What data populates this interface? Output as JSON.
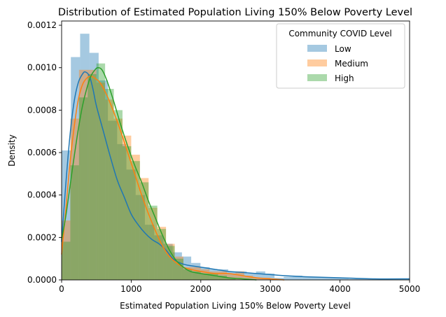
{
  "chart_data": {
    "type": "histogram",
    "title": "Distribution of Estimated Population Living 150% Below Poverty Level",
    "xlabel": "Estimated Population Living 150% Below Poverty Level",
    "ylabel": "Density",
    "xlim": [
      0,
      5000
    ],
    "ylim": [
      0,
      0.00122
    ],
    "x_ticks": [
      0,
      1000,
      2000,
      3000,
      4000,
      5000
    ],
    "x_tick_labels": [
      "0",
      "1000",
      "2000",
      "3000",
      "4000",
      "5000"
    ],
    "y_ticks": [
      0,
      0.0002,
      0.0004,
      0.0006,
      0.0008,
      0.001,
      0.0012
    ],
    "y_tick_labels": [
      "0.0000",
      "0.0002",
      "0.0004",
      "0.0006",
      "0.0008",
      "0.0010",
      "0.0012"
    ],
    "grid": false,
    "legend": {
      "title": "Community COVID Level",
      "placement": "top-right"
    },
    "series": [
      {
        "name": "Low",
        "color": "#1f77b4",
        "bars": [
          {
            "x0": 0,
            "x1": 133,
            "y": 0.00061
          },
          {
            "x0": 133,
            "x1": 266,
            "y": 0.00105
          },
          {
            "x0": 266,
            "x1": 399,
            "y": 0.00116
          },
          {
            "x0": 399,
            "x1": 532,
            "y": 0.00107
          },
          {
            "x0": 532,
            "x1": 665,
            "y": 0.00094
          },
          {
            "x0": 665,
            "x1": 798,
            "y": 0.00075
          },
          {
            "x0": 798,
            "x1": 931,
            "y": 0.00064
          },
          {
            "x0": 931,
            "x1": 1064,
            "y": 0.00052
          },
          {
            "x0": 1064,
            "x1": 1197,
            "y": 0.0004
          },
          {
            "x0": 1197,
            "x1": 1330,
            "y": 0.00026
          },
          {
            "x0": 1330,
            "x1": 1463,
            "y": 0.00021
          },
          {
            "x0": 1463,
            "x1": 1596,
            "y": 0.00017
          },
          {
            "x0": 1596,
            "x1": 1729,
            "y": 0.00013
          },
          {
            "x0": 1729,
            "x1": 1862,
            "y": 0.00011
          },
          {
            "x0": 1862,
            "x1": 1995,
            "y": 8e-05
          },
          {
            "x0": 1995,
            "x1": 2128,
            "y": 6e-05
          },
          {
            "x0": 2128,
            "x1": 2261,
            "y": 5e-05
          },
          {
            "x0": 2261,
            "x1": 2394,
            "y": 5e-05
          },
          {
            "x0": 2394,
            "x1": 2527,
            "y": 4e-05
          },
          {
            "x0": 2527,
            "x1": 2660,
            "y": 4e-05
          },
          {
            "x0": 2660,
            "x1": 2793,
            "y": 3e-05
          },
          {
            "x0": 2793,
            "x1": 2926,
            "y": 4e-05
          },
          {
            "x0": 2926,
            "x1": 3059,
            "y": 3e-05
          },
          {
            "x0": 3059,
            "x1": 3192,
            "y": 1e-05
          },
          {
            "x0": 3192,
            "x1": 3325,
            "y": 1.5e-05
          },
          {
            "x0": 3325,
            "x1": 3458,
            "y": 2e-05
          },
          {
            "x0": 3458,
            "x1": 3591,
            "y": 1.5e-05
          },
          {
            "x0": 3591,
            "x1": 3724,
            "y": 1.5e-05
          },
          {
            "x0": 3724,
            "x1": 3857,
            "y": 1e-05
          },
          {
            "x0": 3857,
            "x1": 3990,
            "y": 1e-05
          },
          {
            "x0": 3990,
            "x1": 4123,
            "y": 1e-05
          },
          {
            "x0": 4123,
            "x1": 4256,
            "y": 5e-06
          },
          {
            "x0": 4256,
            "x1": 4389,
            "y": 5e-06
          },
          {
            "x0": 4389,
            "x1": 4522,
            "y": 5e-06
          },
          {
            "x0": 4522,
            "x1": 4655,
            "y": 5e-06
          },
          {
            "x0": 4655,
            "x1": 4788,
            "y": 5e-06
          },
          {
            "x0": 4788,
            "x1": 5000,
            "y": 5e-06
          }
        ],
        "kde": [
          [
            0,
            0.00018
          ],
          [
            60,
            0.00045
          ],
          [
            120,
            0.00068
          ],
          [
            180,
            0.00084
          ],
          [
            240,
            0.00093
          ],
          [
            300,
            0.00097
          ],
          [
            340,
            0.00098
          ],
          [
            400,
            0.00096
          ],
          [
            450,
            0.0009
          ],
          [
            500,
            0.00082
          ],
          [
            600,
            0.0007
          ],
          [
            700,
            0.00058
          ],
          [
            800,
            0.00047
          ],
          [
            900,
            0.00039
          ],
          [
            1000,
            0.00031
          ],
          [
            1100,
            0.00026
          ],
          [
            1200,
            0.00022
          ],
          [
            1300,
            0.00019
          ],
          [
            1400,
            0.00017
          ],
          [
            1500,
            0.00014
          ],
          [
            1600,
            0.0001
          ],
          [
            1700,
            8e-05
          ],
          [
            1800,
            7e-05
          ],
          [
            2000,
            6e-05
          ],
          [
            2200,
            5e-05
          ],
          [
            2400,
            4e-05
          ],
          [
            2600,
            3.5e-05
          ],
          [
            2800,
            3e-05
          ],
          [
            3000,
            2.5e-05
          ],
          [
            3200,
            2e-05
          ],
          [
            3500,
            1.5e-05
          ],
          [
            4000,
            1e-05
          ],
          [
            4500,
            5e-06
          ],
          [
            5000,
            5e-06
          ]
        ]
      },
      {
        "name": "Medium",
        "color": "#ff7f0e",
        "bars": [
          {
            "x0": 0,
            "x1": 125,
            "y": 0.00028
          },
          {
            "x0": 125,
            "x1": 250,
            "y": 0.00076
          },
          {
            "x0": 250,
            "x1": 375,
            "y": 0.00099
          },
          {
            "x0": 375,
            "x1": 500,
            "y": 0.00099
          },
          {
            "x0": 500,
            "x1": 625,
            "y": 0.00093
          },
          {
            "x0": 625,
            "x1": 750,
            "y": 0.00085
          },
          {
            "x0": 750,
            "x1": 875,
            "y": 0.00076
          },
          {
            "x0": 875,
            "x1": 1000,
            "y": 0.00068
          },
          {
            "x0": 1000,
            "x1": 1125,
            "y": 0.00059
          },
          {
            "x0": 1125,
            "x1": 1250,
            "y": 0.00048
          },
          {
            "x0": 1250,
            "x1": 1375,
            "y": 0.00034
          },
          {
            "x0": 1375,
            "x1": 1500,
            "y": 0.00025
          },
          {
            "x0": 1500,
            "x1": 1625,
            "y": 0.00017
          },
          {
            "x0": 1625,
            "x1": 1750,
            "y": 0.00011
          },
          {
            "x0": 1750,
            "x1": 1875,
            "y": 6e-05
          },
          {
            "x0": 1875,
            "x1": 2000,
            "y": 6e-05
          },
          {
            "x0": 2000,
            "x1": 2125,
            "y": 5e-05
          },
          {
            "x0": 2125,
            "x1": 2250,
            "y": 4e-05
          },
          {
            "x0": 2250,
            "x1": 2375,
            "y": 4e-05
          },
          {
            "x0": 2375,
            "x1": 2500,
            "y": 3e-05
          },
          {
            "x0": 2500,
            "x1": 2625,
            "y": 4e-05
          },
          {
            "x0": 2625,
            "x1": 2750,
            "y": 2e-05
          },
          {
            "x0": 2750,
            "x1": 2875,
            "y": 1e-05
          },
          {
            "x0": 2875,
            "x1": 3000,
            "y": 1e-05
          }
        ],
        "kde": [
          [
            0,
            0.00012
          ],
          [
            60,
            0.00033
          ],
          [
            120,
            0.00055
          ],
          [
            180,
            0.00072
          ],
          [
            240,
            0.00085
          ],
          [
            300,
            0.00092
          ],
          [
            360,
            0.00095
          ],
          [
            420,
            0.00096
          ],
          [
            480,
            0.00095
          ],
          [
            550,
            0.00093
          ],
          [
            650,
            0.00087
          ],
          [
            750,
            0.00079
          ],
          [
            850,
            0.0007
          ],
          [
            950,
            0.0006
          ],
          [
            1050,
            0.0005
          ],
          [
            1150,
            0.0004
          ],
          [
            1250,
            0.00031
          ],
          [
            1350,
            0.00023
          ],
          [
            1450,
            0.00016
          ],
          [
            1550,
            0.00011
          ],
          [
            1650,
            8e-05
          ],
          [
            1750,
            6e-05
          ],
          [
            1850,
            5e-05
          ],
          [
            2000,
            4e-05
          ],
          [
            2200,
            3e-05
          ],
          [
            2400,
            3e-05
          ],
          [
            2600,
            2e-05
          ],
          [
            2800,
            1e-05
          ],
          [
            3000,
            5e-06
          ],
          [
            3200,
            0.0
          ]
        ]
      },
      {
        "name": "High",
        "color": "#2ca02c",
        "bars": [
          {
            "x0": 0,
            "x1": 125,
            "y": 0.00018
          },
          {
            "x0": 125,
            "x1": 250,
            "y": 0.00054
          },
          {
            "x0": 250,
            "x1": 375,
            "y": 0.00086
          },
          {
            "x0": 375,
            "x1": 500,
            "y": 0.00097
          },
          {
            "x0": 500,
            "x1": 625,
            "y": 0.00102
          },
          {
            "x0": 625,
            "x1": 750,
            "y": 0.0009
          },
          {
            "x0": 750,
            "x1": 875,
            "y": 0.0008
          },
          {
            "x0": 875,
            "x1": 1000,
            "y": 0.00063
          },
          {
            "x0": 1000,
            "x1": 1125,
            "y": 0.00056
          },
          {
            "x0": 1125,
            "x1": 1250,
            "y": 0.00046
          },
          {
            "x0": 1250,
            "x1": 1375,
            "y": 0.00035
          },
          {
            "x0": 1375,
            "x1": 1500,
            "y": 0.00024
          },
          {
            "x0": 1500,
            "x1": 1625,
            "y": 0.00016
          },
          {
            "x0": 1625,
            "x1": 1750,
            "y": 0.0001
          },
          {
            "x0": 1750,
            "x1": 1875,
            "y": 5e-05
          },
          {
            "x0": 1875,
            "x1": 2000,
            "y": 4e-05
          },
          {
            "x0": 2000,
            "x1": 2125,
            "y": 3e-05
          },
          {
            "x0": 2125,
            "x1": 2250,
            "y": 3e-05
          },
          {
            "x0": 2250,
            "x1": 2375,
            "y": 2e-05
          },
          {
            "x0": 2375,
            "x1": 2500,
            "y": 1e-05
          }
        ],
        "kde": [
          [
            0,
            0.00019
          ],
          [
            60,
            0.0003
          ],
          [
            120,
            0.00044
          ],
          [
            180,
            0.00058
          ],
          [
            240,
            0.00071
          ],
          [
            300,
            0.00082
          ],
          [
            360,
            0.0009
          ],
          [
            420,
            0.00096
          ],
          [
            480,
            0.00099
          ],
          [
            520,
            0.001
          ],
          [
            580,
            0.00099
          ],
          [
            650,
            0.00094
          ],
          [
            750,
            0.00084
          ],
          [
            850,
            0.00073
          ],
          [
            950,
            0.00063
          ],
          [
            1050,
            0.00054
          ],
          [
            1150,
            0.00046
          ],
          [
            1250,
            0.00037
          ],
          [
            1350,
            0.00029
          ],
          [
            1450,
            0.00021
          ],
          [
            1550,
            0.00014
          ],
          [
            1650,
            9e-05
          ],
          [
            1750,
            6e-05
          ],
          [
            1850,
            4e-05
          ],
          [
            2000,
            3e-05
          ],
          [
            2200,
            2e-05
          ],
          [
            2400,
            1e-05
          ],
          [
            2600,
            5e-06
          ],
          [
            2800,
            0.0
          ]
        ]
      }
    ]
  }
}
